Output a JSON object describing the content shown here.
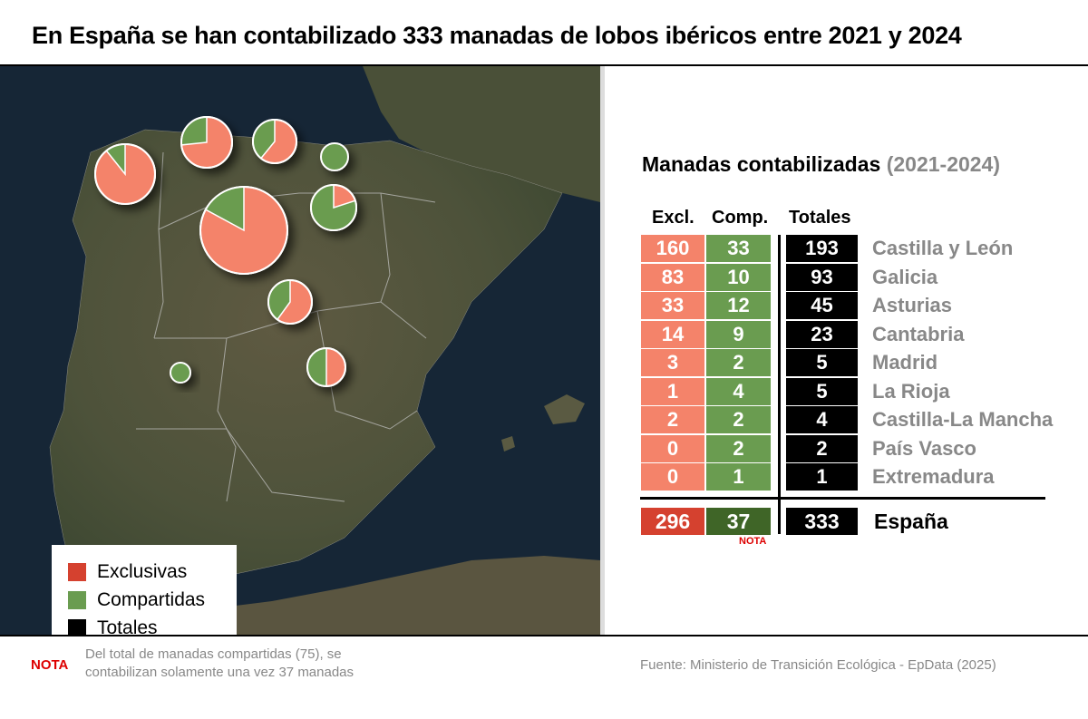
{
  "title": "En España se han contabilizado 333 manadas de lobos ibéricos entre 2021 y 2024",
  "colors": {
    "exclusivas": "#f4836a",
    "compartidas": "#6a9c50",
    "totales": "#000000",
    "total_excl": "#d5412f",
    "total_comp": "#3f6527",
    "region_text": "#888888",
    "nota": "#dd0000"
  },
  "legend": [
    {
      "label": "Exclusivas",
      "color": "#d5412f"
    },
    {
      "label": "Compartidas",
      "color": "#6a9c50"
    },
    {
      "label": "Totales",
      "color": "#000000"
    }
  ],
  "table": {
    "title": "Manadas contabilizadas",
    "title_period": "(2021-2024)",
    "headers": {
      "excl": "Excl.",
      "comp": "Comp.",
      "total": "Totales"
    },
    "rows": [
      {
        "region": "Castilla y León",
        "excl": "160",
        "comp": "33",
        "total": "193"
      },
      {
        "region": "Galicia",
        "excl": "83",
        "comp": "10",
        "total": "93"
      },
      {
        "region": "Asturias",
        "excl": "33",
        "comp": "12",
        "total": "45"
      },
      {
        "region": "Cantabria",
        "excl": "14",
        "comp": "9",
        "total": "23"
      },
      {
        "region": "Madrid",
        "excl": "3",
        "comp": "2",
        "total": "5"
      },
      {
        "region": "La Rioja",
        "excl": "1",
        "comp": "4",
        "total": "5"
      },
      {
        "region": "Castilla-La Mancha",
        "excl": "2",
        "comp": "2",
        "total": "4"
      },
      {
        "region": "País Vasco",
        "excl": "0",
        "comp": "2",
        "total": "2"
      },
      {
        "region": "Extremadura",
        "excl": "0",
        "comp": "1",
        "total": "1"
      }
    ],
    "totals": {
      "region": "España",
      "excl": "296",
      "comp": "37",
      "total": "333",
      "note_marker": "NOTA"
    }
  },
  "note": {
    "label": "NOTA",
    "text": "Del total de manadas compartidas (75), se contabilizan solamente una vez 37 manadas"
  },
  "source": "Fuente: Ministerio de Transición Ecológica - EpData (2025)"
}
